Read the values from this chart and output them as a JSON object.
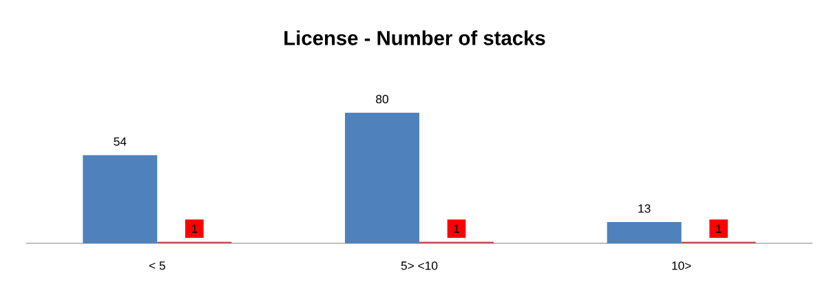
{
  "chart_data": {
    "type": "bar",
    "title": "License  - Number of stacks",
    "categories": [
      "< 5",
      "5> <10",
      "10>"
    ],
    "series": [
      {
        "color": "#4f81bd",
        "values": [
          54,
          80,
          13
        ]
      },
      {
        "color": "#c0504d",
        "values": [
          1,
          1,
          1
        ]
      }
    ],
    "data_labels": true,
    "grid": false
  }
}
